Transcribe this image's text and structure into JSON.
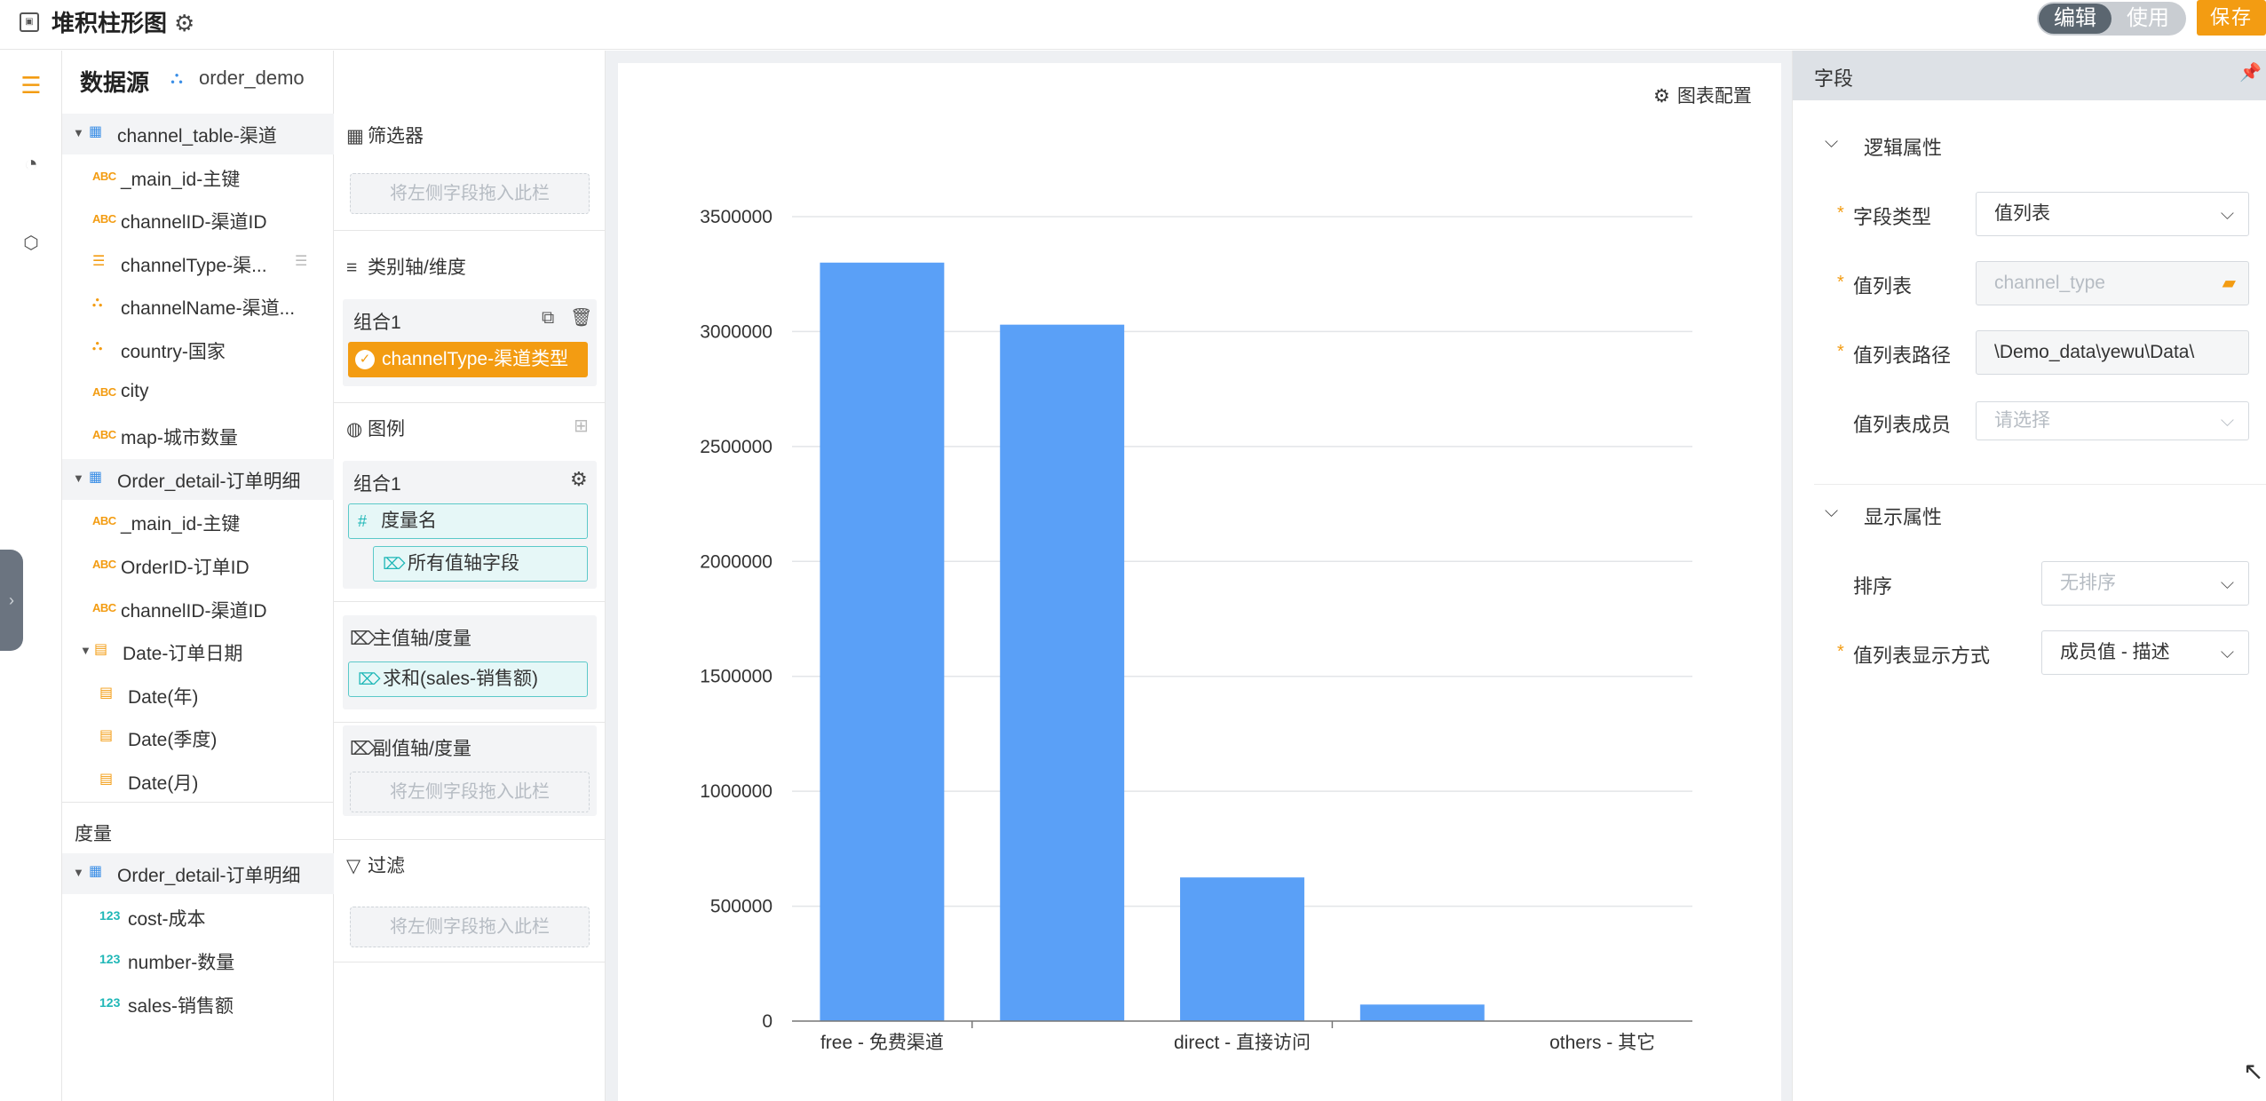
{
  "topbar": {
    "app_icon": "dashboard-icon",
    "title": "堆积柱形图",
    "mode_edit": "编辑",
    "mode_use": "使用",
    "save": "保存"
  },
  "sidebar_icons": [
    "datasource-icon",
    "chart-icon",
    "js-script-icon"
  ],
  "datasource": {
    "title": "数据源",
    "model": "order_demo",
    "tree": [
      {
        "label": "channel_table-渠道",
        "type": "table",
        "level": 0,
        "group": true
      },
      {
        "label": "_main_id-主键",
        "type": "abc",
        "level": 1
      },
      {
        "label": "channelID-渠道ID",
        "type": "abc",
        "level": 1
      },
      {
        "label": "channelType-渠...",
        "type": "list",
        "level": 1,
        "more": true
      },
      {
        "label": "channelName-渠道...",
        "type": "geo",
        "level": 1
      },
      {
        "label": "country-国家",
        "type": "geo",
        "level": 1
      },
      {
        "label": "city",
        "type": "abc",
        "level": 1
      },
      {
        "label": "map-城市数量",
        "type": "abc",
        "level": 1
      },
      {
        "label": "Order_detail-订单明细",
        "type": "table",
        "level": 0,
        "group": true
      },
      {
        "label": "_main_id-主键",
        "type": "abc",
        "level": 1
      },
      {
        "label": "OrderID-订单ID",
        "type": "abc",
        "level": 1
      },
      {
        "label": "channelID-渠道ID",
        "type": "abc",
        "level": 1
      },
      {
        "label": "Date-订单日期",
        "type": "date",
        "level": 1,
        "expand": true
      },
      {
        "label": "Date(年)",
        "type": "date",
        "level": 2
      },
      {
        "label": "Date(季度)",
        "type": "date",
        "level": 2
      },
      {
        "label": "Date(月)",
        "type": "date",
        "level": 2
      }
    ],
    "measure_title": "度量",
    "measures": [
      {
        "label": "Order_detail-订单明细",
        "type": "table",
        "level": 0,
        "group": true
      },
      {
        "label": "cost-成本",
        "type": "num",
        "level": 2
      },
      {
        "label": "number-数量",
        "type": "num",
        "level": 2
      },
      {
        "label": "sales-销售额",
        "type": "num",
        "level": 2
      }
    ],
    "type_glyphs": {
      "abc": "ABC",
      "num": "123"
    }
  },
  "config": {
    "filter_title": "筛选器",
    "drop_hint": "将左侧字段拖入此栏",
    "category_title": "类别轴/维度",
    "category_group": "组合1",
    "category_field": "channelType-渠道类型",
    "legend_title": "图例",
    "legend_group": "组合1",
    "legend_measure_name": "度量名",
    "legend_all_values": "所有值轴字段",
    "main_axis_title": "主值轴/度量",
    "main_axis_field": "求和(sales-销售额)",
    "sub_axis_title": "副值轴/度量",
    "filter2_title": "过滤"
  },
  "chart_header": {
    "config_label": "图表配置"
  },
  "chart_data": {
    "type": "bar",
    "categories": [
      "free - 免费渠道",
      "",
      "direct - 直接访问",
      "",
      "others - 其它"
    ],
    "values": [
      3300000,
      3030000,
      625000,
      72000,
      0
    ],
    "ylim": [
      0,
      3500000
    ],
    "yticks": [
      0,
      500000,
      1000000,
      1500000,
      2000000,
      2500000,
      3000000,
      3500000
    ],
    "ytick_labels": [
      "0",
      "500000",
      "1000000",
      "1500000",
      "2000000",
      "2500000",
      "3000000",
      "3500000"
    ],
    "xtick_labels": [
      "free - 免费渠道",
      "direct - 直接访问",
      "others - 其它"
    ],
    "grid": true,
    "bar_color": "#5aa0f7"
  },
  "properties": {
    "header": "字段",
    "logic_section": "逻辑属性",
    "field_type_label": "字段类型",
    "field_type_value": "值列表",
    "value_list_label": "值列表",
    "value_list_placeholder": "channel_type",
    "value_list_path_label": "值列表路径",
    "value_list_path_value": "\\Demo_data\\yewu\\Data\\",
    "value_list_member_label": "值列表成员",
    "value_list_member_placeholder": "请选择",
    "display_section": "显示属性",
    "sort_label": "排序",
    "sort_placeholder": "无排序",
    "display_mode_label": "值列表显示方式",
    "display_mode_value": "成员值 - 描述"
  },
  "colors": {
    "accent": "#f39c12",
    "bar": "#5aa0f7",
    "teal": "#1fb7b7"
  }
}
